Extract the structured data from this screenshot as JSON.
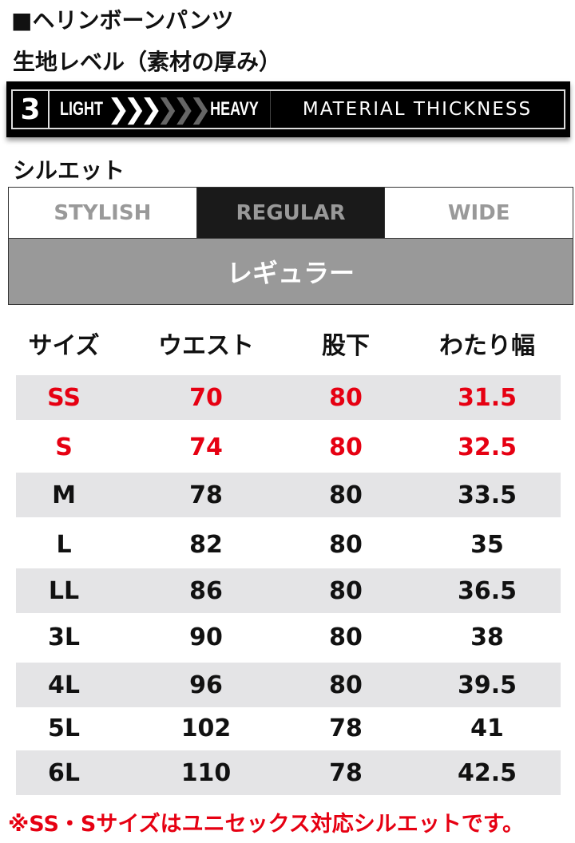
{
  "product_title": "■ヘリンボーンパンツ",
  "material_heading": "生地レベル（素材の厚み）",
  "material": {
    "level": "3",
    "light_label": "LIGHT",
    "heavy_label": "HEAVY",
    "label": "MATERIAL THICKNESS",
    "filled_chevrons": 3,
    "total_chevrons": 6
  },
  "silhouette_heading": "シルエット",
  "silhouette": {
    "options": [
      "STYLISH",
      "REGULAR",
      "WIDE"
    ],
    "selected": "REGULAR",
    "selected_label": "レギュラー"
  },
  "table": {
    "headers": [
      "サイズ",
      "ウエスト",
      "股下",
      "わたり幅"
    ],
    "rows": [
      {
        "cells": [
          "SS",
          "70",
          "80",
          "31.5"
        ],
        "highlight": true
      },
      {
        "cells": [
          "S",
          "74",
          "80",
          "32.5"
        ],
        "highlight": true
      },
      {
        "cells": [
          "M",
          "78",
          "80",
          "33.5"
        ]
      },
      {
        "cells": [
          "L",
          "82",
          "80",
          "35"
        ]
      },
      {
        "cells": [
          "LL",
          "86",
          "80",
          "36.5"
        ]
      },
      {
        "cells": [
          "3L",
          "90",
          "80",
          "38"
        ]
      },
      {
        "cells": [
          "4L",
          "96",
          "80",
          "39.5"
        ]
      },
      {
        "cells": [
          "5L",
          "102",
          "78",
          "41"
        ]
      },
      {
        "cells": [
          "6L",
          "110",
          "78",
          "42.5"
        ]
      }
    ]
  },
  "note": "※SS・Sサイズはユニセックス対応シルエットです。",
  "colors": {
    "highlight": "#e60012",
    "row_stripe": "#e4e4e6",
    "selected_tab": "#1a1a1a",
    "selected_label_bg": "#999999"
  }
}
